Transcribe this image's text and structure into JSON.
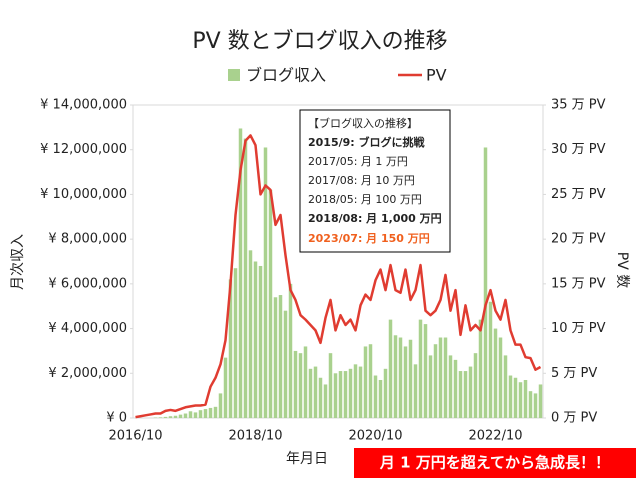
{
  "chart_data": {
    "type": "bar-line",
    "title": "PV 数とブログ収入の推移",
    "x_label": "年月日",
    "y_label": "月次収入",
    "y2_label": "PV 数",
    "banner": "月 1 万円を超えてから急成長！！",
    "annotations": [
      "【ブログ収入の推移】",
      "2015/9: ブログに挑戦",
      "2017/05: 月 1 万円",
      "2017/08: 月 10 万円",
      "2018/05: 月 100 万円",
      "2018/08: 月 1,000 万円",
      "2023/07: 月 150 万円"
    ],
    "categories": [
      "2016/10",
      null,
      null,
      null,
      null,
      null,
      null,
      null,
      null,
      null,
      null,
      null,
      null,
      null,
      null,
      null,
      null,
      null,
      null,
      null,
      null,
      null,
      null,
      null,
      "2018/10",
      null,
      null,
      null,
      null,
      null,
      null,
      null,
      null,
      null,
      null,
      null,
      null,
      null,
      null,
      null,
      null,
      null,
      null,
      null,
      null,
      null,
      null,
      null,
      "2020/10",
      null,
      null,
      null,
      null,
      null,
      null,
      null,
      null,
      null,
      null,
      null,
      null,
      null,
      null,
      null,
      null,
      null,
      null,
      null,
      null,
      null,
      null,
      null,
      "2022/10",
      null,
      null,
      null,
      null,
      null,
      null,
      null,
      null,
      null
    ],
    "series": [
      {
        "name": "ブログ収入",
        "type": "bar",
        "color": "#a9d18e",
        "values": [
          0,
          0,
          0,
          0,
          20000,
          30000,
          50000,
          80000,
          100000,
          150000,
          200000,
          300000,
          250000,
          350000,
          400000,
          450000,
          500000,
          1100000,
          2700000,
          6200000,
          6700000,
          12950000,
          12500000,
          7500000,
          7000000,
          6800000,
          12100000,
          10200000,
          5400000,
          5500000,
          4800000,
          6000000,
          3000000,
          2900000,
          3200000,
          2200000,
          2300000,
          1800000,
          1500000,
          2900000,
          2000000,
          2100000,
          2100000,
          2200000,
          2400000,
          2300000,
          3200000,
          3300000,
          1900000,
          1700000,
          2200000,
          4400000,
          3700000,
          3600000,
          3200000,
          3500000,
          2400000,
          4400000,
          4200000,
          2800000,
          3300000,
          3600000,
          3600000,
          2800000,
          2600000,
          2100000,
          2100000,
          2300000,
          2900000,
          4400000,
          12100000,
          5200000,
          4000000,
          3600000,
          2800000,
          1900000,
          1800000,
          1600000,
          1700000,
          1200000,
          1100000,
          1500000
        ]
      },
      {
        "name": "PV",
        "type": "line",
        "axis": "y2",
        "color": "#e03c31",
        "values": [
          0.1,
          0.2,
          0.3,
          0.4,
          0.5,
          0.5,
          0.8,
          0.9,
          0.8,
          1.0,
          1.2,
          1.3,
          1.4,
          1.4,
          1.5,
          3.5,
          4.5,
          6.0,
          8.7,
          15,
          22.7,
          27.7,
          31,
          31.6,
          30.5,
          25,
          26,
          25.5,
          21.6,
          22.7,
          18.2,
          14.3,
          13.2,
          11.5,
          11,
          10.4,
          9.8,
          8.4,
          11.2,
          13.2,
          9.8,
          11.5,
          10.4,
          11,
          9.8,
          12.6,
          13.8,
          13.2,
          15.4,
          16.6,
          14.3,
          17.1,
          14.3,
          14,
          16.6,
          13.2,
          14.3,
          17.1,
          12,
          11.5,
          12,
          13.2,
          16,
          12,
          14.3,
          9.3,
          12.6,
          9.8,
          10.4,
          9.8,
          12.6,
          14.3,
          12,
          11,
          13.2,
          9.8,
          8.2,
          8.2,
          6.8,
          6.7,
          5.4,
          5.7
        ]
      }
    ],
    "ylim": [
      0,
      14000000
    ],
    "yticks": [
      {
        "value": 0,
        "label": "¥ 0"
      },
      {
        "value": 2000000,
        "label": "¥ 2,000,000"
      },
      {
        "value": 4000000,
        "label": "¥ 4,000,000"
      },
      {
        "value": 6000000,
        "label": "¥ 6,000,000"
      },
      {
        "value": 8000000,
        "label": "¥ 8,000,000"
      },
      {
        "value": 10000000,
        "label": "¥ 10,000,000"
      },
      {
        "value": 12000000,
        "label": "¥ 12,000,000"
      },
      {
        "value": 14000000,
        "label": "¥ 14,000,000"
      }
    ],
    "y2lim": [
      0,
      35
    ],
    "y2ticks": [
      {
        "value": 0,
        "label": "0 万 PV"
      },
      {
        "value": 5,
        "label": "5 万 PV"
      },
      {
        "value": 10,
        "label": "10 万 PV"
      },
      {
        "value": 15,
        "label": "15 万 PV"
      },
      {
        "value": 20,
        "label": "20 万 PV"
      },
      {
        "value": 25,
        "label": "25 万 PV"
      },
      {
        "value": 30,
        "label": "30 万 PV"
      },
      {
        "value": 35,
        "label": "35 万 PV"
      }
    ],
    "legend": "top"
  }
}
